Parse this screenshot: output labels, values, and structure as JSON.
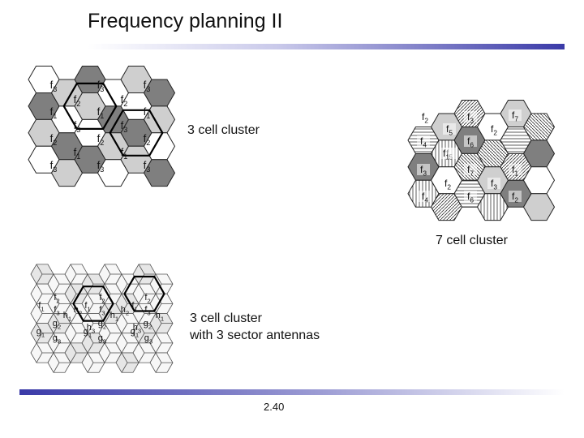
{
  "slide": {
    "title": "Frequency planning II",
    "page_number": "2.40"
  },
  "three_cell": {
    "caption": "3 cell cluster",
    "cells": [
      {
        "label": "f3",
        "base": "f",
        "sub": "3"
      },
      {
        "label": "f3",
        "base": "f",
        "sub": "3"
      },
      {
        "label": "f3",
        "base": "f",
        "sub": "3"
      },
      {
        "label": "f2",
        "base": "f",
        "sub": "2"
      },
      {
        "label": "f2",
        "base": "f",
        "sub": "2"
      },
      {
        "label": "f1",
        "base": "f",
        "sub": "1"
      },
      {
        "label": "f1",
        "base": "f",
        "sub": "1"
      },
      {
        "label": "f1",
        "base": "f",
        "sub": "1"
      },
      {
        "label": "f3",
        "base": "f",
        "sub": "3"
      },
      {
        "label": "f3",
        "base": "f",
        "sub": "3"
      },
      {
        "label": "f2",
        "base": "f",
        "sub": "2"
      },
      {
        "label": "f2",
        "base": "f",
        "sub": "2"
      },
      {
        "label": "f2",
        "base": "f",
        "sub": "2"
      },
      {
        "label": "f1",
        "base": "f",
        "sub": "1"
      },
      {
        "label": "f1",
        "base": "f",
        "sub": "1"
      },
      {
        "label": "f3",
        "base": "f",
        "sub": "3"
      },
      {
        "label": "f3",
        "base": "f",
        "sub": "3"
      },
      {
        "label": "f3",
        "base": "f",
        "sub": "3"
      }
    ],
    "fill_colors": {
      "f1": "#7f7f7f",
      "f2": "#cfcfcf",
      "f3": "#ffffff"
    }
  },
  "seven_cell": {
    "caption": "7 cell cluster",
    "cells": [
      {
        "label": "f2",
        "base": "f",
        "sub": "2"
      },
      {
        "label": "f3",
        "base": "f",
        "sub": "3"
      },
      {
        "label": "f7",
        "base": "f",
        "sub": "7"
      },
      {
        "label": "f5",
        "base": "f",
        "sub": "5"
      },
      {
        "label": "f2",
        "base": "f",
        "sub": "2"
      },
      {
        "label": "f4",
        "base": "f",
        "sub": "4"
      },
      {
        "label": "f6",
        "base": "f",
        "sub": "6"
      },
      {
        "label": "f5",
        "base": "f",
        "sub": "5"
      },
      {
        "label": "f1",
        "base": "f",
        "sub": "1"
      },
      {
        "label": "f3",
        "base": "f",
        "sub": "3"
      },
      {
        "label": "f7",
        "base": "f",
        "sub": "7"
      },
      {
        "label": "f1",
        "base": "f",
        "sub": "1"
      },
      {
        "label": "f2",
        "base": "f",
        "sub": "2"
      },
      {
        "label": "f3",
        "base": "f",
        "sub": "3"
      },
      {
        "label": "f4",
        "base": "f",
        "sub": "4"
      },
      {
        "label": "f6",
        "base": "f",
        "sub": "6"
      },
      {
        "label": "f2",
        "base": "f",
        "sub": "2"
      }
    ],
    "fill_colors": {
      "f1": "#7f7f7f",
      "f2": "#cfcfcf",
      "f3": "#ffffff"
    }
  },
  "sector": {
    "caption_line1": "3 cell cluster",
    "caption_line2": "with 3 sector antennas",
    "labels": [
      {
        "label": "f2",
        "base": "f",
        "sub": "2"
      },
      {
        "label": "f2",
        "base": "f",
        "sub": "2"
      },
      {
        "label": "f2",
        "base": "f",
        "sub": "2"
      },
      {
        "label": "f1",
        "base": "f",
        "sub": "1"
      },
      {
        "label": "f3",
        "base": "f",
        "sub": "3"
      },
      {
        "label": "h2",
        "base": "h",
        "sub": "2"
      },
      {
        "label": "f1",
        "base": "f",
        "sub": "1"
      },
      {
        "label": "f3",
        "base": "f",
        "sub": "3"
      },
      {
        "label": "h2",
        "base": "h",
        "sub": "2"
      },
      {
        "label": "f1",
        "base": "f",
        "sub": "1"
      },
      {
        "label": "f3",
        "base": "f",
        "sub": "3"
      },
      {
        "label": "h1",
        "base": "h",
        "sub": "1"
      },
      {
        "label": "h1",
        "base": "h",
        "sub": "1"
      },
      {
        "label": "h3",
        "base": "h",
        "sub": "3"
      },
      {
        "label": "h1",
        "base": "h",
        "sub": "1"
      },
      {
        "label": "h3",
        "base": "h",
        "sub": "3"
      },
      {
        "label": "g2",
        "base": "g",
        "sub": "2"
      },
      {
        "label": "g2",
        "base": "g",
        "sub": "2"
      },
      {
        "label": "g2",
        "base": "g",
        "sub": "2"
      },
      {
        "label": "g1",
        "base": "g",
        "sub": "1"
      },
      {
        "label": "g1",
        "base": "g",
        "sub": "1"
      },
      {
        "label": "g1",
        "base": "g",
        "sub": "1"
      },
      {
        "label": "g3",
        "base": "g",
        "sub": "3"
      },
      {
        "label": "g3",
        "base": "g",
        "sub": "3"
      },
      {
        "label": "g3",
        "base": "g",
        "sub": "3"
      }
    ]
  }
}
